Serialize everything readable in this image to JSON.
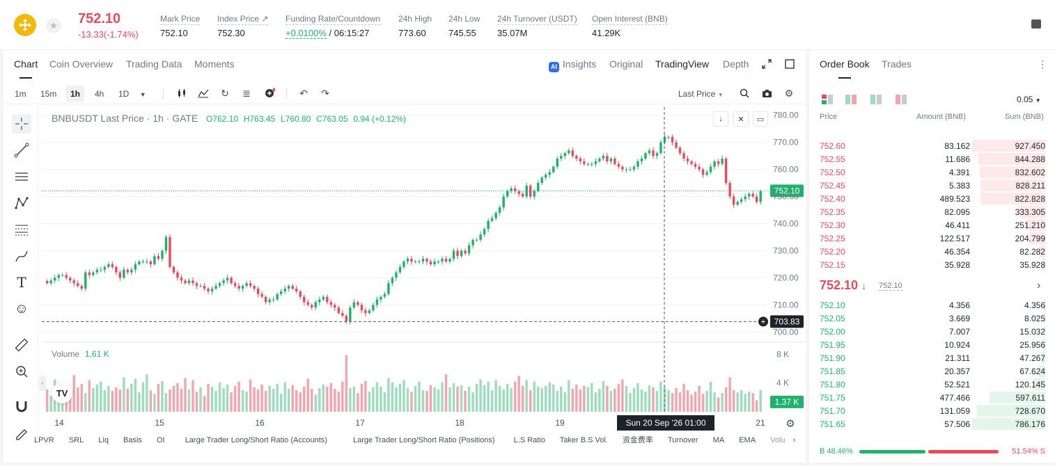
{
  "ticker": {
    "last_price": "752.10",
    "change": "-13.33(-1.74%)",
    "stats": [
      {
        "label": "Mark Price",
        "value": "752.10"
      },
      {
        "label": "Index Price ↗",
        "value": "752.30"
      },
      {
        "label": "Funding Rate/Countdown",
        "value_rate": "+0.0100%",
        "value_countdown": "/ 06:15:27"
      },
      {
        "label": "24h High",
        "value": "773.60"
      },
      {
        "label": "24h Low",
        "value": "745.55"
      },
      {
        "label": "24h Turnover (USDT)",
        "value": "35.07M"
      },
      {
        "label": "Open Interest (BNB)",
        "value": "41.29K"
      }
    ]
  },
  "chart_tabs": [
    "Chart",
    "Coin Overview",
    "Trading Data",
    "Moments"
  ],
  "view_options": {
    "insights": "Insights",
    "original": "Original",
    "tradingview": "TradingView",
    "depth": "Depth",
    "ai_badge": "AI"
  },
  "timeframes": [
    "1m",
    "15m",
    "1h",
    "4h",
    "1D"
  ],
  "price_source": "Last Price",
  "legend": {
    "symbol": "BNBUSDT Last Price · 1h · GATE",
    "o": "O762.10",
    "h": "H763.45",
    "l": "L760.80",
    "c": "C763.05",
    "chg": "0.94 (+0.12%)"
  },
  "volume_legend": {
    "label": "Volume",
    "value": "1.61 K"
  },
  "price_axis": [
    "780.00",
    "770.00",
    "760.00",
    "750.00",
    "740.00",
    "730.00",
    "720.00",
    "710.00",
    "700.00"
  ],
  "volume_axis": [
    "8 K",
    "4 K"
  ],
  "time_axis": [
    "14",
    "15",
    "16",
    "17",
    "18",
    "19",
    "21"
  ],
  "price_labels": {
    "current": "752.10",
    "crosshair": "703.83",
    "volume": "1.37 K"
  },
  "crosshair_time": "Sun 20 Sep '26   01:00",
  "indicators": [
    "LPVR",
    "SRL",
    "Liq",
    "Basis",
    "OI",
    "Large Trader Long/Short Ratio (Accounts)",
    "Large Trader Long/Short Ratio (Positions)",
    "L.S Ratio",
    "Taker B.S Vol.",
    "资金费率",
    "Turnover",
    "MA",
    "EMA",
    "Volu"
  ],
  "chart_data": {
    "type": "candlestick",
    "symbol": "BNBUSDT",
    "interval": "1h",
    "ylim": [
      697,
      783
    ],
    "last": 752.1,
    "horizontal_line": 703.83,
    "closes": [
      718,
      719,
      720,
      721,
      721,
      720,
      719,
      718,
      717,
      716,
      722,
      721,
      722,
      723,
      723,
      724,
      725,
      724,
      722,
      720,
      723,
      722,
      723,
      725,
      726,
      726,
      726,
      725,
      728,
      727,
      730,
      735,
      724,
      722,
      720,
      719,
      718,
      719,
      718,
      717,
      717,
      716,
      715,
      716,
      717,
      718,
      719,
      720,
      718,
      717,
      716,
      717,
      718,
      717,
      716,
      714,
      713,
      711,
      712,
      712,
      714,
      715,
      716,
      717,
      716,
      715,
      713,
      711,
      710,
      709,
      711,
      712,
      713,
      711,
      710,
      709,
      707,
      706,
      704,
      709,
      711,
      710,
      708,
      707,
      708,
      710,
      712,
      713,
      714,
      718,
      720,
      722,
      724,
      726,
      727,
      726,
      726,
      726,
      727,
      726,
      725,
      726,
      726,
      727,
      726,
      727,
      730,
      728,
      730,
      729,
      732,
      734,
      734,
      736,
      738,
      741,
      742,
      744,
      746,
      750,
      752,
      753,
      752,
      751,
      750,
      754,
      750,
      752,
      755,
      757,
      758,
      759,
      761,
      764,
      765,
      766,
      767,
      765,
      764,
      763,
      762,
      762,
      762,
      763,
      764,
      765,
      763,
      764,
      762,
      761,
      760,
      760,
      760,
      761,
      763,
      764,
      766,
      767,
      765,
      766,
      770,
      772,
      772,
      770,
      768,
      766,
      764,
      763,
      762,
      761,
      760,
      758,
      759,
      761,
      763,
      762,
      764,
      755,
      750,
      747,
      748,
      749,
      750,
      751,
      750,
      748,
      752
    ],
    "volume_k": [
      3.1,
      2.2,
      4.5,
      3.8,
      2.1,
      3.2,
      2.8,
      5.1,
      3.4,
      3.9,
      2.6,
      4.4,
      3.3,
      3.8,
      4.2,
      3.0,
      3.6,
      2.9,
      3.4,
      3.1,
      4.8,
      3.2,
      3.9,
      4.6,
      2.7,
      4.1,
      5.2,
      3.0,
      2.5,
      3.9,
      4.3,
      2.6,
      3.1,
      3.6,
      4.0,
      3.2,
      4.7,
      3.1,
      4.4,
      2.8,
      3.4,
      2.2,
      3.9,
      3.5,
      2.9,
      4.1,
      3.3,
      3.8,
      2.7,
      3.6,
      4.2,
      3.0,
      2.8,
      4.5,
      3.4,
      3.1,
      3.8,
      2.9,
      3.6,
      3.2,
      3.9,
      2.5,
      4.1,
      3.2,
      3.7,
      3.0,
      2.7,
      3.5,
      4.6,
      3.2,
      2.4,
      3.3,
      3.8,
      3.5,
      4.0,
      3.2,
      2.8,
      4.2,
      7.9,
      3.3,
      3.5,
      2.6,
      3.9,
      4.3,
      2.8,
      3.4,
      4.1,
      3.5,
      2.7,
      4.7,
      4.1,
      3.4,
      3.9,
      4.4,
      3.3,
      2.8,
      3.6,
      4.2,
      3.0,
      2.9,
      3.7,
      3.4,
      3.1,
      4.1,
      5.2,
      3.4,
      4.0,
      3.5,
      3.7,
      2.9,
      3.5,
      2.7,
      3.9,
      4.5,
      3.7,
      4.2,
      3.0,
      4.4,
      3.6,
      3.1,
      3.9,
      3.3,
      4.2,
      5.0,
      3.6,
      4.4,
      3.0,
      4.2,
      3.5,
      3.3,
      3.6,
      4.1,
      3.8,
      2.9,
      3.5,
      2.7,
      4.4,
      3.2,
      3.8,
      3.1,
      3.6,
      3.4,
      4.0,
      2.7,
      3.2,
      4.3,
      3.6,
      2.9,
      3.2,
      3.9,
      4.5,
      3.6,
      2.6,
      3.3,
      4.0,
      3.1,
      2.8,
      3.7,
      3.4,
      2.9,
      4.2,
      3.5,
      3.0,
      2.6,
      3.3,
      2.7,
      3.9,
      3.0,
      2.4,
      2.8,
      3.6,
      2.5,
      2.9,
      4.2,
      2.7,
      2.0,
      2.6,
      3.4,
      4.8,
      3.0,
      2.7,
      3.0,
      2.5,
      2.8,
      2.6,
      1.6
    ]
  },
  "order_book": {
    "tabs": [
      "Order Book",
      "Trades"
    ],
    "precision": "0.05",
    "headers": {
      "price": "Price",
      "amount": "Amount (BNB)",
      "sum": "Sum (BNB)"
    },
    "asks": [
      {
        "price": "752.60",
        "amount": "83.162",
        "sum": "927.450",
        "fill": 1.0
      },
      {
        "price": "752.55",
        "amount": "11.686",
        "sum": "844.288",
        "fill": 0.91
      },
      {
        "price": "752.50",
        "amount": "4.391",
        "sum": "832.602",
        "fill": 0.9
      },
      {
        "price": "752.45",
        "amount": "5.383",
        "sum": "828.211",
        "fill": 0.89
      },
      {
        "price": "752.40",
        "amount": "489.523",
        "sum": "822.828",
        "fill": 0.89
      },
      {
        "price": "752.35",
        "amount": "82.095",
        "sum": "333.305",
        "fill": 0.36
      },
      {
        "price": "752.30",
        "amount": "46.411",
        "sum": "251.210",
        "fill": 0.27
      },
      {
        "price": "752.25",
        "amount": "122.517",
        "sum": "204.799",
        "fill": 0.22
      },
      {
        "price": "752.20",
        "amount": "46.354",
        "sum": "82.282",
        "fill": 0.09
      },
      {
        "price": "752.15",
        "amount": "35.928",
        "sum": "35.928",
        "fill": 0.04
      }
    ],
    "mid_price": "752.10",
    "mid_arrow": "↓",
    "mark_price": "752.10",
    "bids": [
      {
        "price": "752.10",
        "amount": "4.356",
        "sum": "4.356",
        "fill": 0.005
      },
      {
        "price": "752.05",
        "amount": "3.669",
        "sum": "8.025",
        "fill": 0.01
      },
      {
        "price": "752.00",
        "amount": "7.007",
        "sum": "15.032",
        "fill": 0.02
      },
      {
        "price": "751.95",
        "amount": "10.924",
        "sum": "25.956",
        "fill": 0.03
      },
      {
        "price": "751.90",
        "amount": "21.311",
        "sum": "47.267",
        "fill": 0.06
      },
      {
        "price": "751.85",
        "amount": "20.357",
        "sum": "67.624",
        "fill": 0.09
      },
      {
        "price": "751.80",
        "amount": "52.521",
        "sum": "120.145",
        "fill": 0.15
      },
      {
        "price": "751.75",
        "amount": "477.466",
        "sum": "597.611",
        "fill": 0.76
      },
      {
        "price": "751.70",
        "amount": "131.059",
        "sum": "728.670",
        "fill": 0.93
      },
      {
        "price": "751.65",
        "amount": "57.506",
        "sum": "786.176",
        "fill": 1.0
      }
    ],
    "buy_ratio": "B 48.46%",
    "sell_ratio": "51.54% S",
    "buy_fraction": 0.4846
  },
  "colors": {
    "up": "#20b26c",
    "down": "#e8495b",
    "up_vol": "#9ddcbe",
    "down_vol": "#f2a5ae",
    "brand": "#f0b90b"
  }
}
